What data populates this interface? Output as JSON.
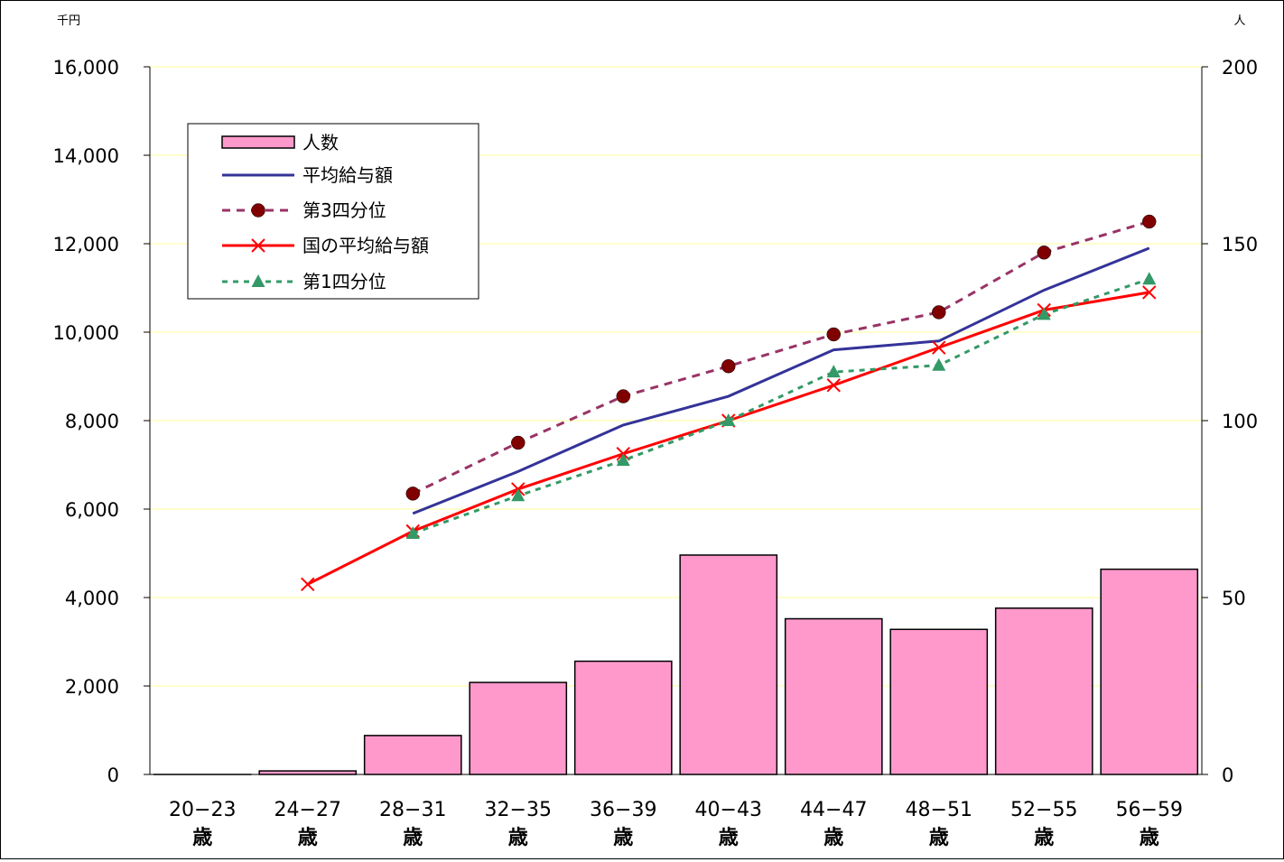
{
  "chart_data": {
    "type": "bar+line",
    "title": "",
    "y_left_unit": "千円",
    "y_right_unit": "人",
    "y_left_ticks": [
      "16,000",
      "14,000",
      "12,000",
      "10,000",
      "8,000",
      "6,000",
      "4,000",
      "2,000",
      "0"
    ],
    "y_right_ticks": [
      "200",
      "150",
      "100",
      "50",
      "0"
    ],
    "y_left_range": [
      0,
      16000
    ],
    "y_right_range": [
      0,
      200
    ],
    "gridlines": true,
    "legend_position": "upper-left inside plot",
    "categories": [
      {
        "range": "20−23",
        "unit": "歳"
      },
      {
        "range": "24−27",
        "unit": "歳"
      },
      {
        "range": "28−31",
        "unit": "歳"
      },
      {
        "range": "32−35",
        "unit": "歳"
      },
      {
        "range": "36−39",
        "unit": "歳"
      },
      {
        "range": "40−43",
        "unit": "歳"
      },
      {
        "range": "44−47",
        "unit": "歳"
      },
      {
        "range": "48−51",
        "unit": "歳"
      },
      {
        "range": "52−55",
        "unit": "歳"
      },
      {
        "range": "56−59",
        "unit": "歳"
      }
    ],
    "bars": {
      "name": "人数",
      "axis": "right",
      "color": "#ff99cc",
      "values": [
        0,
        1,
        11,
        26,
        32,
        62,
        44,
        41,
        47,
        58
      ]
    },
    "series": [
      {
        "name": "平均給与額",
        "axis": "left",
        "color": "#333399",
        "style": "solid",
        "marker": "none",
        "values": [
          null,
          null,
          5900,
          6850,
          7900,
          8550,
          9600,
          9800,
          10950,
          11900
        ]
      },
      {
        "name": "第3四分位",
        "axis": "left",
        "color": "#993366",
        "style": "dashed",
        "marker": "circle",
        "marker_color": "#800000",
        "values": [
          null,
          null,
          6350,
          7500,
          8550,
          9230,
          9950,
          10450,
          11800,
          12500
        ]
      },
      {
        "name": "国の平均給与額",
        "axis": "left",
        "color": "#ff0000",
        "style": "solid",
        "marker": "x",
        "values": [
          null,
          4300,
          5500,
          6450,
          7250,
          8000,
          8800,
          9650,
          10500,
          10900
        ]
      },
      {
        "name": "第1四分位",
        "axis": "left",
        "color": "#339966",
        "style": "dotted",
        "marker": "triangle",
        "values": [
          null,
          null,
          5450,
          6300,
          7100,
          8000,
          9100,
          9250,
          10400,
          11200
        ]
      }
    ]
  }
}
